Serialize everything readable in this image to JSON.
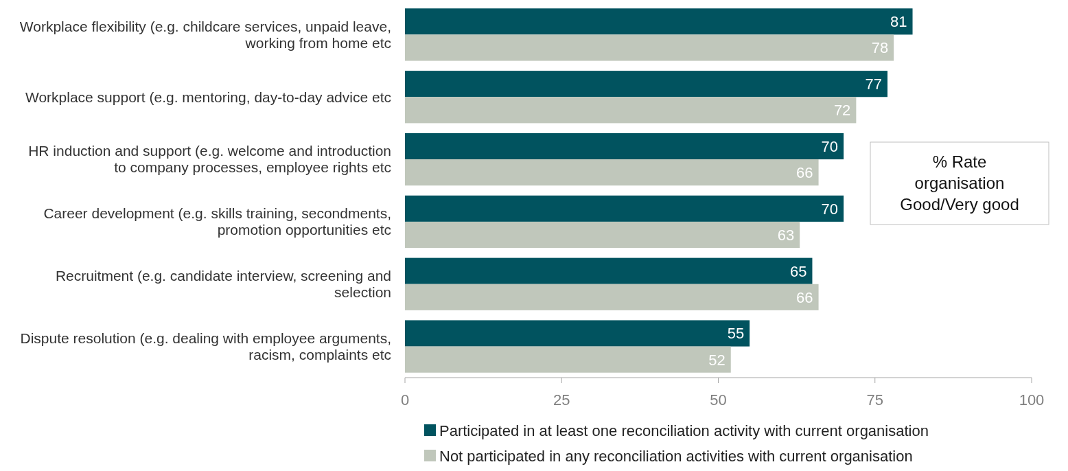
{
  "chart_data": {
    "type": "bar",
    "orientation": "horizontal",
    "categories": [
      "Workplace flexibility (e.g. childcare services, unpaid leave, working from home etc",
      "Workplace support (e.g. mentoring, day-to-day advice etc",
      "HR induction and support (e.g. welcome and introduction to company processes, employee rights etc",
      "Career development (e.g. skills training, secondments, promotion opportunities etc",
      "Recruitment (e.g. candidate interview, screening and selection",
      "Dispute resolution (e.g. dealing with employee arguments, racism, complaints etc"
    ],
    "series": [
      {
        "name": "Participated in at least one reconciliation activity with current organisation",
        "color": "#01535f",
        "values": [
          81,
          77,
          70,
          70,
          65,
          55
        ]
      },
      {
        "name": "Not participated in any reconciliation activities with current organisation",
        "color": "#c0c7bb",
        "values": [
          78,
          72,
          66,
          63,
          66,
          52
        ]
      }
    ],
    "xlim": [
      0,
      100
    ],
    "xticks": [
      0,
      25,
      50,
      75,
      100
    ],
    "grid": false,
    "legend": "bottom",
    "data_labels": true,
    "annotations": [
      "% Rate organisation Good/Very good"
    ]
  }
}
